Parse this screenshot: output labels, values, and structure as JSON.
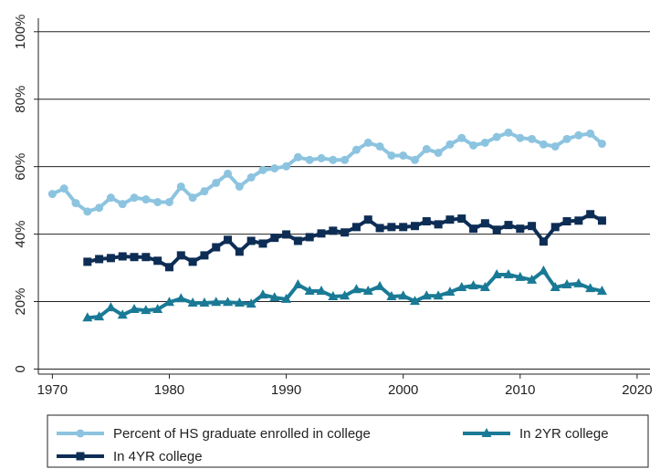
{
  "chart_data": {
    "type": "line",
    "x": [
      1970,
      1971,
      1972,
      1973,
      1974,
      1975,
      1976,
      1977,
      1978,
      1979,
      1980,
      1981,
      1982,
      1983,
      1984,
      1985,
      1986,
      1987,
      1988,
      1989,
      1990,
      1991,
      1992,
      1993,
      1994,
      1995,
      1996,
      1997,
      1998,
      1999,
      2000,
      2001,
      2002,
      2003,
      2004,
      2005,
      2006,
      2007,
      2008,
      2009,
      2010,
      2011,
      2012,
      2013,
      2014,
      2015,
      2016,
      2017
    ],
    "series": [
      {
        "name": "Percent of HS graduate enrolled in college",
        "color": "#8cc4e0",
        "marker": "circle",
        "values": [
          51.9,
          53.5,
          49.2,
          46.7,
          47.8,
          50.8,
          48.9,
          50.8,
          50.3,
          49.5,
          49.5,
          54.1,
          50.8,
          52.7,
          55.2,
          57.9,
          54.1,
          56.8,
          59.0,
          59.5,
          60.1,
          62.8,
          62.0,
          62.5,
          62.0,
          62.0,
          65.0,
          67.1,
          66.0,
          63.3,
          63.3,
          62.0,
          65.2,
          64.1,
          66.6,
          68.5,
          66.3,
          67.1,
          68.8,
          70.1,
          68.5,
          68.2,
          66.6,
          66.0,
          68.2,
          69.3,
          69.8,
          66.8
        ]
      },
      {
        "name": "In 2YR college",
        "color": "#1a7a96",
        "marker": "triangle",
        "values": [
          null,
          null,
          null,
          15.2,
          15.5,
          18.2,
          16.0,
          17.7,
          17.4,
          17.7,
          19.8,
          20.9,
          19.6,
          19.6,
          19.8,
          19.8,
          19.6,
          19.3,
          22.0,
          21.2,
          20.7,
          25.0,
          23.1,
          23.1,
          21.5,
          21.7,
          23.6,
          23.1,
          24.5,
          21.5,
          21.7,
          20.1,
          21.7,
          21.7,
          22.8,
          24.2,
          24.7,
          24.2,
          28.0,
          28.0,
          27.2,
          26.4,
          29.1,
          24.2,
          25.0,
          25.3,
          23.9,
          23.1
        ]
      },
      {
        "name": "In 4YR college",
        "color": "#0d2d55",
        "marker": "square",
        "values": [
          null,
          null,
          null,
          31.8,
          32.6,
          32.9,
          33.4,
          33.2,
          33.2,
          32.1,
          30.2,
          33.7,
          31.8,
          33.7,
          36.1,
          38.3,
          34.8,
          38.0,
          37.2,
          38.9,
          39.9,
          38.0,
          39.1,
          40.2,
          41.0,
          40.5,
          42.1,
          44.3,
          41.8,
          42.1,
          42.1,
          42.4,
          43.8,
          42.9,
          44.3,
          44.6,
          41.6,
          43.2,
          41.3,
          42.7,
          41.6,
          42.4,
          37.8,
          42.1,
          43.8,
          44.0,
          45.9,
          44.0
        ]
      }
    ],
    "xlim": [
      1968.8,
      2021.1
    ],
    "xticks": [
      1970,
      1980,
      1990,
      2000,
      2010,
      2020
    ],
    "ylim": [
      -1.5,
      104
    ],
    "yticks": [
      0,
      {
        "value": 20,
        "label": "20%"
      },
      {
        "value": 40,
        "label": "40%"
      },
      {
        "value": 60,
        "label": "60%"
      },
      {
        "value": 80,
        "label": "80%"
      },
      {
        "value": 100,
        "label": "100%"
      }
    ],
    "grid": true
  }
}
